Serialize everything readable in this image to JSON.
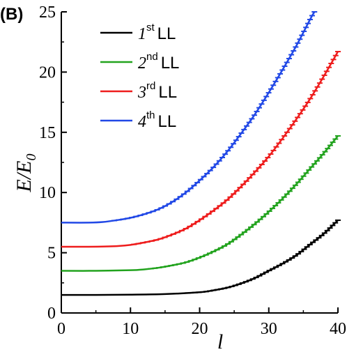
{
  "panel_label": "(B)",
  "chart_data": {
    "type": "line",
    "xlabel": "l",
    "ylabel_main": "E/E",
    "ylabel_sub": "0",
    "xlim": [
      0,
      40
    ],
    "ylim": [
      0,
      25
    ],
    "xticks": [
      0,
      10,
      20,
      30,
      40
    ],
    "yticks": [
      0,
      5,
      10,
      15,
      20,
      25
    ],
    "grid": false,
    "legend_position": "top-left",
    "series": [
      {
        "name": "1st LL",
        "legend_num": "1",
        "legend_sup": "st",
        "legend_suffix": "LL",
        "color": "#000000",
        "x": [
          0,
          5,
          10,
          15,
          20,
          22,
          24,
          26,
          28,
          30,
          32,
          34,
          36,
          38,
          40
        ],
        "y": [
          1.5,
          1.5,
          1.52,
          1.57,
          1.72,
          1.88,
          2.1,
          2.45,
          2.9,
          3.5,
          4.1,
          4.8,
          5.7,
          6.6,
          7.7
        ]
      },
      {
        "name": "2nd LL",
        "legend_num": "2",
        "legend_sup": "nd",
        "legend_suffix": "LL",
        "color": "#22a31e",
        "x": [
          0,
          5,
          10,
          12,
          14,
          16,
          18,
          20,
          22,
          24,
          26,
          28,
          30,
          32,
          34,
          36,
          38,
          40
        ],
        "y": [
          3.5,
          3.5,
          3.55,
          3.62,
          3.75,
          3.95,
          4.2,
          4.6,
          5.1,
          5.7,
          6.5,
          7.4,
          8.4,
          9.5,
          10.7,
          12.0,
          13.3,
          14.7
        ]
      },
      {
        "name": "3rd LL",
        "legend_num": "3",
        "legend_sup": "rd",
        "legend_suffix": "LL",
        "color": "#ee1c1c",
        "x": [
          0,
          4,
          8,
          10,
          12,
          14,
          16,
          18,
          20,
          22,
          24,
          26,
          28,
          30,
          32,
          34,
          36,
          38,
          40
        ],
        "y": [
          5.5,
          5.5,
          5.55,
          5.65,
          5.85,
          6.1,
          6.5,
          7.0,
          7.7,
          8.5,
          9.4,
          10.5,
          11.7,
          13.0,
          14.5,
          16.1,
          17.8,
          19.7,
          21.7
        ]
      },
      {
        "name": "4th LL",
        "legend_num": "4",
        "legend_sup": "th",
        "legend_suffix": "LL",
        "color": "#2148e6",
        "x": [
          0,
          4,
          6,
          8,
          10,
          12,
          14,
          16,
          18,
          20,
          22,
          24,
          26,
          28,
          30,
          32,
          34,
          36,
          36.6
        ],
        "y": [
          7.5,
          7.5,
          7.55,
          7.7,
          7.9,
          8.2,
          8.6,
          9.2,
          10.0,
          11.0,
          12.1,
          13.4,
          14.9,
          16.5,
          18.3,
          20.2,
          22.2,
          24.4,
          25.0
        ]
      }
    ]
  }
}
